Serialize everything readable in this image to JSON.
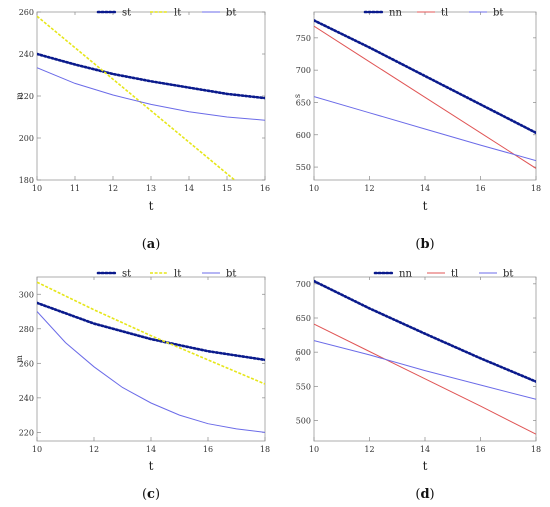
{
  "chart_data": [
    {
      "type": "line",
      "panel_label": "a",
      "xlabel": "t",
      "ylabel": "m",
      "xlim": [
        10,
        16
      ],
      "ylim": [
        180,
        260
      ],
      "xticks": [
        10,
        11,
        12,
        13,
        14,
        15,
        16
      ],
      "yticks": [
        180,
        200,
        220,
        240,
        260
      ],
      "grid": false,
      "legend": "top",
      "series": [
        {
          "name": "st",
          "color": "#0a1a8c",
          "style": "dotted",
          "x": [
            10,
            11,
            12,
            13,
            14,
            15,
            16
          ],
          "values": [
            240,
            235,
            230.5,
            227,
            224,
            221,
            219
          ]
        },
        {
          "name": "lt",
          "color": "#e6e619",
          "style": "dashed",
          "x": [
            10,
            11,
            12,
            13,
            14,
            15,
            15.2
          ],
          "values": [
            258,
            243,
            228,
            213,
            198,
            183,
            180
          ]
        },
        {
          "name": "bt",
          "color": "#6b6be8",
          "style": "solid",
          "x": [
            10,
            11,
            12,
            13,
            14,
            15,
            16
          ],
          "values": [
            233.5,
            226,
            220.5,
            216,
            212.5,
            210,
            208.5
          ]
        }
      ]
    },
    {
      "type": "line",
      "panel_label": "b",
      "xlabel": "t",
      "ylabel": "s",
      "xlim": [
        10,
        18
      ],
      "ylim": [
        530,
        790
      ],
      "xticks": [
        10,
        12,
        14,
        16,
        18
      ],
      "yticks": [
        550,
        600,
        650,
        700,
        750
      ],
      "grid": false,
      "legend": "top",
      "series": [
        {
          "name": "nn",
          "color": "#0a1a8c",
          "style": "dotted",
          "x": [
            10,
            12,
            14,
            16,
            18
          ],
          "values": [
            777,
            735,
            691,
            647,
            603
          ]
        },
        {
          "name": "tl",
          "color": "#e05555",
          "style": "solid",
          "x": [
            10,
            12,
            14,
            16,
            18
          ],
          "values": [
            768,
            713,
            658,
            603,
            548
          ]
        },
        {
          "name": "bt",
          "color": "#6b6be8",
          "style": "solid",
          "x": [
            10,
            12,
            14,
            16,
            18
          ],
          "values": [
            659,
            634,
            609,
            584,
            560
          ]
        }
      ]
    },
    {
      "type": "line",
      "panel_label": "c",
      "xlabel": "t",
      "ylabel": "m",
      "xlim": [
        10,
        18
      ],
      "ylim": [
        215,
        310
      ],
      "xticks": [
        10,
        12,
        14,
        16,
        18
      ],
      "yticks": [
        220,
        240,
        260,
        280,
        300
      ],
      "grid": false,
      "legend": "top",
      "series": [
        {
          "name": "st",
          "color": "#0a1a8c",
          "style": "dotted",
          "x": [
            10,
            12,
            14,
            16,
            18
          ],
          "values": [
            295,
            283,
            274,
            267,
            262
          ]
        },
        {
          "name": "lt",
          "color": "#e6e619",
          "style": "dashed",
          "x": [
            10,
            12,
            14,
            16,
            18
          ],
          "values": [
            307,
            291,
            276,
            262,
            248
          ]
        },
        {
          "name": "bt",
          "color": "#6b6be8",
          "style": "solid",
          "x": [
            10,
            11,
            12,
            13,
            14,
            15,
            16,
            17,
            18
          ],
          "values": [
            290,
            272,
            258,
            246,
            237,
            230,
            225,
            222,
            220
          ]
        }
      ]
    },
    {
      "type": "line",
      "panel_label": "d",
      "xlabel": "t",
      "ylabel": "s",
      "xlim": [
        10,
        18
      ],
      "ylim": [
        470,
        710
      ],
      "xticks": [
        10,
        12,
        14,
        16,
        18
      ],
      "yticks": [
        500,
        550,
        600,
        650,
        700
      ],
      "grid": false,
      "legend": "top",
      "series": [
        {
          "name": "nn",
          "color": "#0a1a8c",
          "style": "dotted",
          "x": [
            10,
            12,
            14,
            16,
            18
          ],
          "values": [
            704,
            664,
            627,
            591,
            557
          ]
        },
        {
          "name": "tl",
          "color": "#e05555",
          "style": "solid",
          "x": [
            10,
            12,
            14,
            16,
            18
          ],
          "values": [
            641,
            601,
            561,
            521,
            480
          ]
        },
        {
          "name": "bt",
          "color": "#6b6be8",
          "style": "solid",
          "x": [
            10,
            12,
            14,
            16,
            18
          ],
          "values": [
            617,
            596,
            573,
            552,
            531
          ]
        }
      ]
    }
  ]
}
